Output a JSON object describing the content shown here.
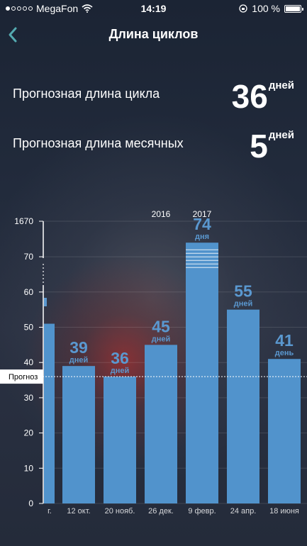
{
  "status_bar": {
    "carrier": "MegaFon",
    "signal_bars_filled": 1,
    "signal_bars_total": 5,
    "time": "14:19",
    "battery_percent": "100 %"
  },
  "nav": {
    "title": "Длина циклов",
    "back_icon": "chevron-left-icon"
  },
  "stats": {
    "cycle_label": "Прогнозная длина цикла",
    "cycle_value": "36",
    "cycle_unit": "дней",
    "period_label": "Прогнозная длина месячных",
    "period_value": "5",
    "period_unit": "дней"
  },
  "colors": {
    "bar": "#5193cc",
    "accent": "#54aab0",
    "label_blue": "#5a98d0"
  },
  "chart_data": {
    "type": "bar",
    "categories": [
      "г.",
      "12 окт.",
      "20 нояб.",
      "26 дек.",
      "9 февр.",
      "24 апр.",
      "18 июня"
    ],
    "values": [
      51,
      39,
      36,
      45,
      74,
      55,
      41
    ],
    "value_labels": [
      "",
      "39",
      "36",
      "45",
      "74",
      "55",
      "41"
    ],
    "unit_labels": [
      "",
      "дней",
      "дней",
      "дней",
      "дня",
      "дней",
      "день"
    ],
    "y_ticks": [
      "0",
      "10",
      "20",
      "30",
      "40",
      "50",
      "60",
      "70",
      "1670"
    ],
    "ylim": [
      0,
      80
    ],
    "axis_break": true,
    "forecast_value": 36,
    "forecast_label": "Прогноз",
    "year_labels": [
      {
        "text": "2016",
        "at_category": 3
      },
      {
        "text": "2017",
        "at_category": 4
      }
    ],
    "grid": true
  }
}
